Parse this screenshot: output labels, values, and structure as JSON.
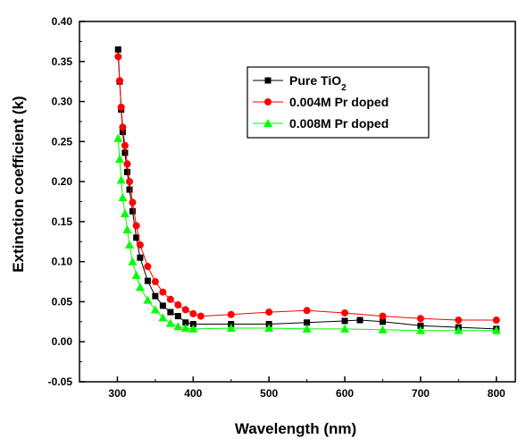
{
  "chart_data": {
    "type": "line",
    "xlabel": "Wavelength (nm)",
    "ylabel": "Extinction coefficient (k)",
    "xlim": [
      250,
      825
    ],
    "ylim": [
      -0.05,
      0.4
    ],
    "xticks": [
      "300",
      "400",
      "500",
      "600",
      "700",
      "800"
    ],
    "yticks": [
      "-0.05",
      "0.00",
      "0.05",
      "0.10",
      "0.15",
      "0.20",
      "0.25",
      "0.30",
      "0.35",
      "0.40"
    ],
    "grid": false,
    "legend_position": "top-right",
    "series": [
      {
        "name": "Pure TiO",
        "name_subscript": "2",
        "marker": "square",
        "color": "#000000",
        "x": [
          301,
          303,
          305,
          307,
          310,
          313,
          316,
          320,
          325,
          330,
          340,
          350,
          360,
          370,
          380,
          390,
          400,
          450,
          500,
          550,
          600,
          620,
          650,
          700,
          750,
          800
        ],
        "y": [
          0.365,
          0.325,
          0.29,
          0.262,
          0.236,
          0.212,
          0.19,
          0.163,
          0.13,
          0.105,
          0.076,
          0.057,
          0.045,
          0.037,
          0.032,
          0.024,
          0.022,
          0.022,
          0.022,
          0.024,
          0.026,
          0.027,
          0.025,
          0.02,
          0.018,
          0.016
        ]
      },
      {
        "name": "0.004M Pr doped",
        "marker": "circle",
        "color": "#ff0000",
        "x": [
          301,
          303,
          305,
          307,
          310,
          313,
          316,
          320,
          325,
          330,
          340,
          350,
          360,
          370,
          380,
          390,
          400,
          410,
          450,
          500,
          550,
          600,
          650,
          700,
          750,
          800
        ],
        "y": [
          0.356,
          0.326,
          0.293,
          0.268,
          0.245,
          0.222,
          0.2,
          0.174,
          0.145,
          0.121,
          0.094,
          0.075,
          0.062,
          0.053,
          0.046,
          0.04,
          0.035,
          0.032,
          0.034,
          0.037,
          0.039,
          0.036,
          0.032,
          0.029,
          0.027,
          0.027
        ]
      },
      {
        "name": "0.008M Pr doped",
        "marker": "triangle",
        "color": "#00ff00",
        "x": [
          301,
          303,
          305,
          307,
          310,
          313,
          316,
          320,
          325,
          330,
          340,
          350,
          360,
          370,
          380,
          390,
          400,
          450,
          500,
          550,
          600,
          650,
          700,
          750,
          800
        ],
        "y": [
          0.254,
          0.228,
          0.202,
          0.18,
          0.16,
          0.14,
          0.121,
          0.1,
          0.083,
          0.068,
          0.052,
          0.04,
          0.03,
          0.023,
          0.019,
          0.017,
          0.016,
          0.017,
          0.017,
          0.016,
          0.016,
          0.015,
          0.014,
          0.014,
          0.014
        ]
      }
    ]
  }
}
